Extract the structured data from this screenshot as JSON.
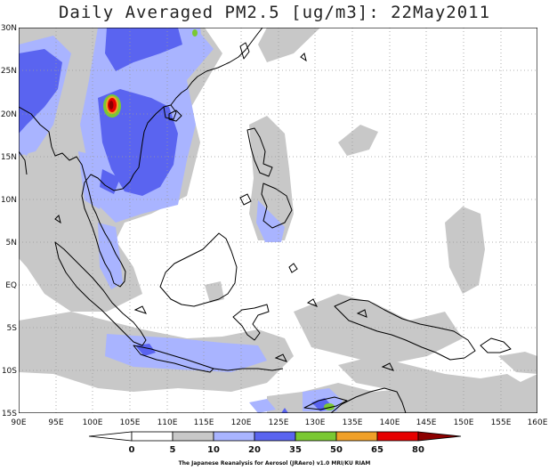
{
  "title": "Daily Averaged PM2.5 [ug/m3]: 22May2011",
  "lat_labels": [
    "30N",
    "25N",
    "20N",
    "15N",
    "10N",
    "5N",
    "EQ",
    "5S",
    "10S",
    "15S"
  ],
  "lon_labels": [
    "90E",
    "95E",
    "100E",
    "105E",
    "110E",
    "115E",
    "120E",
    "125E",
    "130E",
    "135E",
    "140E",
    "145E",
    "150E",
    "155E",
    "160E"
  ],
  "colorbar": {
    "ticks": [
      "0",
      "5",
      "10",
      "20",
      "35",
      "50",
      "65",
      "80"
    ],
    "colors": [
      "#ffffff",
      "#ffffff",
      "#c8c8c8",
      "#a9b4ff",
      "#5a64f0",
      "#7ac832",
      "#f0a028",
      "#e60000",
      "#8c0000"
    ]
  },
  "credit": "The Japanese Reanalysis for Aerosol (JRAero) v1.0 MRI/KU RIAM"
}
